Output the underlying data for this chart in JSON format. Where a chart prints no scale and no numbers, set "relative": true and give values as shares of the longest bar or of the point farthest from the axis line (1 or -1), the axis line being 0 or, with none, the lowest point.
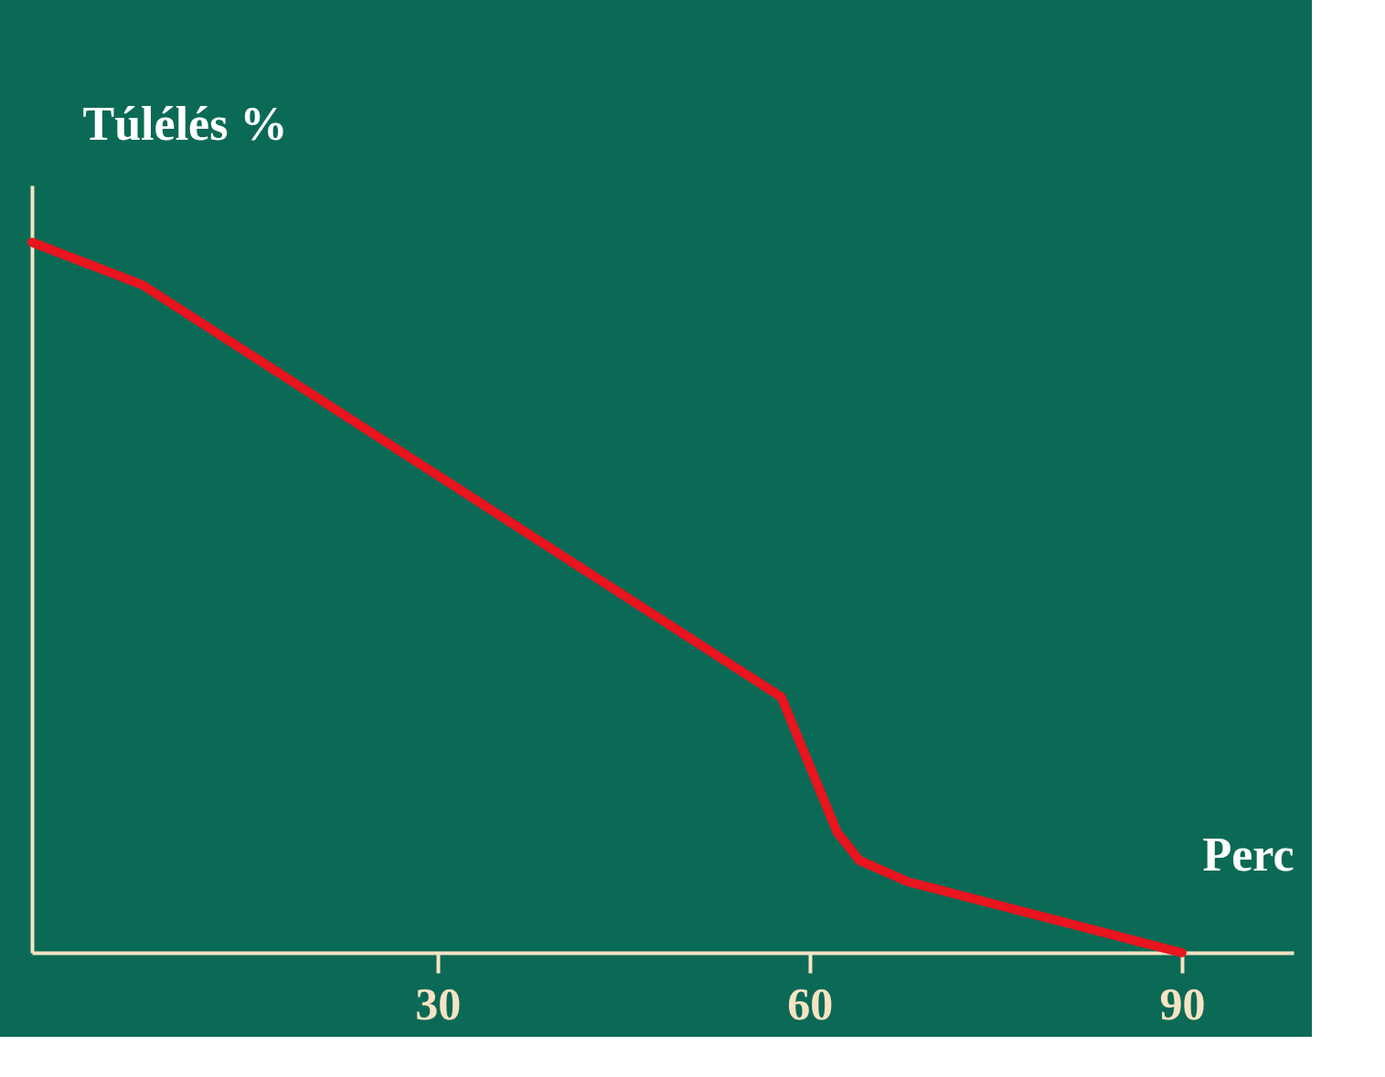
{
  "chart_data": {
    "type": "line",
    "xlabel": "Perc",
    "ylabel": "Túlélés %",
    "relative": true,
    "x": [
      -2.7,
      6.2,
      57.7,
      62.2,
      64.0,
      67.9,
      90
    ],
    "series": [
      {
        "color": "#e8141e",
        "values": [
          1.0,
          0.94,
          0.36,
          0.17,
          0.13,
          0.1,
          0.0
        ]
      }
    ],
    "xlim": [
      -2.7,
      99
    ],
    "xticks": [
      30,
      60,
      90
    ],
    "grid": false,
    "legend": false,
    "marker": "none",
    "line_style": "solid"
  }
}
